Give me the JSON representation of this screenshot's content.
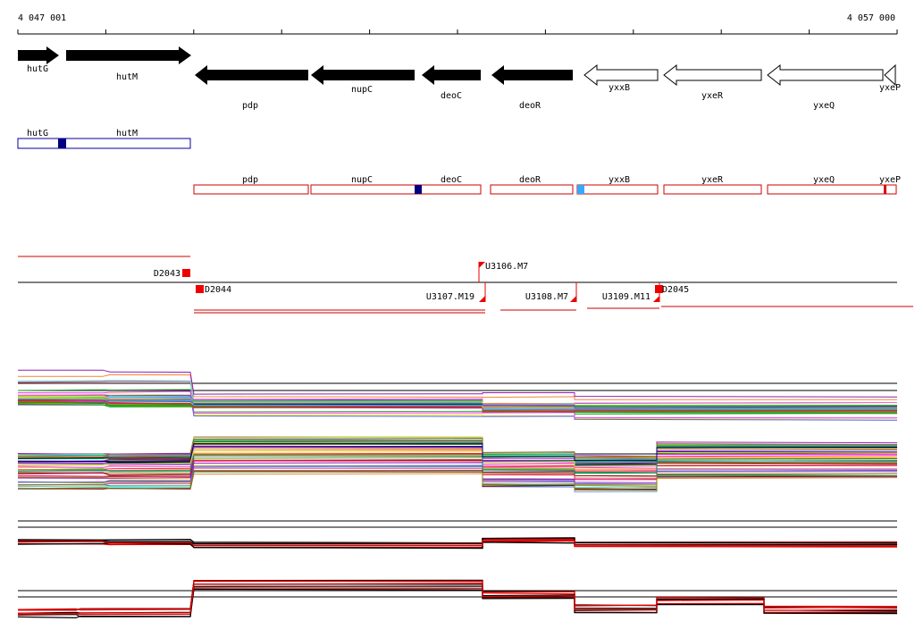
{
  "coordinates": {
    "start_label": "4 047 001",
    "end_label": "4 057 000"
  },
  "colors": {
    "gene_forward": "#000000",
    "gene_reverse_outline": "#000000",
    "operon_blue": "#000099",
    "operon_red": "#cc0000",
    "marker_dark_blue": "#000080",
    "marker_light_blue": "#33aaff",
    "promoter_red": "#ee0000",
    "profile_black": "#000000",
    "profile_red": "#dd0000"
  },
  "genes": [
    {
      "name": "hutG",
      "strand": "+",
      "style": "filled"
    },
    {
      "name": "hutM",
      "strand": "+",
      "style": "filled"
    },
    {
      "name": "pdp",
      "strand": "-",
      "style": "filled"
    },
    {
      "name": "nupC",
      "strand": "-",
      "style": "filled"
    },
    {
      "name": "deoC",
      "strand": "-",
      "style": "filled"
    },
    {
      "name": "deoR",
      "strand": "-",
      "style": "filled"
    },
    {
      "name": "yxxB",
      "strand": "-",
      "style": "open"
    },
    {
      "name": "yxeR",
      "strand": "-",
      "style": "open"
    },
    {
      "name": "yxeQ",
      "strand": "-",
      "style": "open"
    },
    {
      "name": "yxeP",
      "strand": "-",
      "style": "open"
    }
  ],
  "operon_tracks": {
    "forward": {
      "labels": [
        "hutG",
        "hutM"
      ],
      "markers": [
        "dark-blue"
      ]
    },
    "reverse": {
      "labels": [
        "pdp",
        "nupC",
        "deoC",
        "deoR",
        "yxxB",
        "yxeR",
        "yxeQ",
        "yxeP"
      ],
      "markers": [
        "dark-blue",
        "light-blue",
        "red"
      ]
    }
  },
  "features": [
    {
      "name": "D2043"
    },
    {
      "name": "D2044"
    },
    {
      "name": "U3106.M7"
    },
    {
      "name": "U3107.M19"
    },
    {
      "name": "U3108.M7"
    },
    {
      "name": "U3109.M11"
    },
    {
      "name": "D2045"
    }
  ]
}
